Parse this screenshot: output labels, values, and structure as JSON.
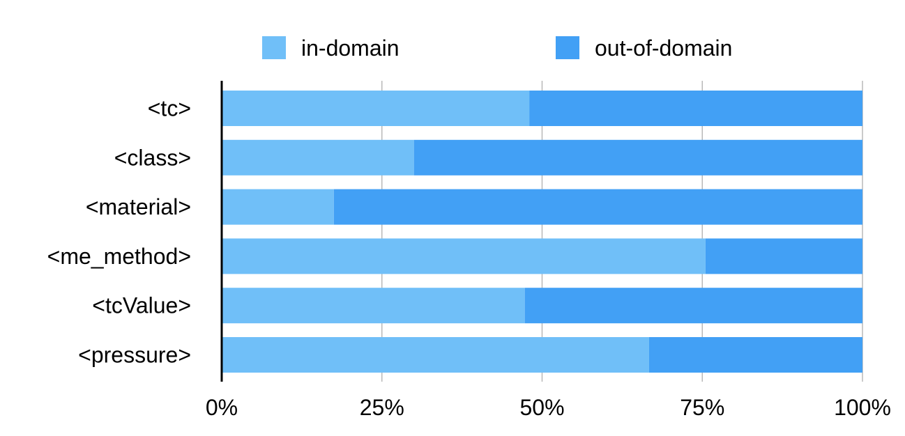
{
  "chart_data": {
    "type": "bar",
    "orientation": "horizontal",
    "stacked": "percent",
    "categories": [
      "<tc>",
      "<class>",
      "<material>",
      "<me_method>",
      "<tcValue>",
      "<pressure>"
    ],
    "series": [
      {
        "name": "in-domain",
        "color": "#70bff8",
        "values": [
          48,
          30,
          17.5,
          75.5,
          47.3,
          66.7
        ]
      },
      {
        "name": "out-of-domain",
        "color": "#42a0f5",
        "values": [
          52,
          70,
          82.5,
          24.5,
          52.7,
          33.3
        ]
      }
    ],
    "xlim": [
      0,
      100
    ],
    "xticks": [
      "0%",
      "25%",
      "50%",
      "75%",
      "100%"
    ],
    "grid": "vertical",
    "legend": "top-center",
    "title": "",
    "xlabel": "",
    "ylabel": ""
  }
}
